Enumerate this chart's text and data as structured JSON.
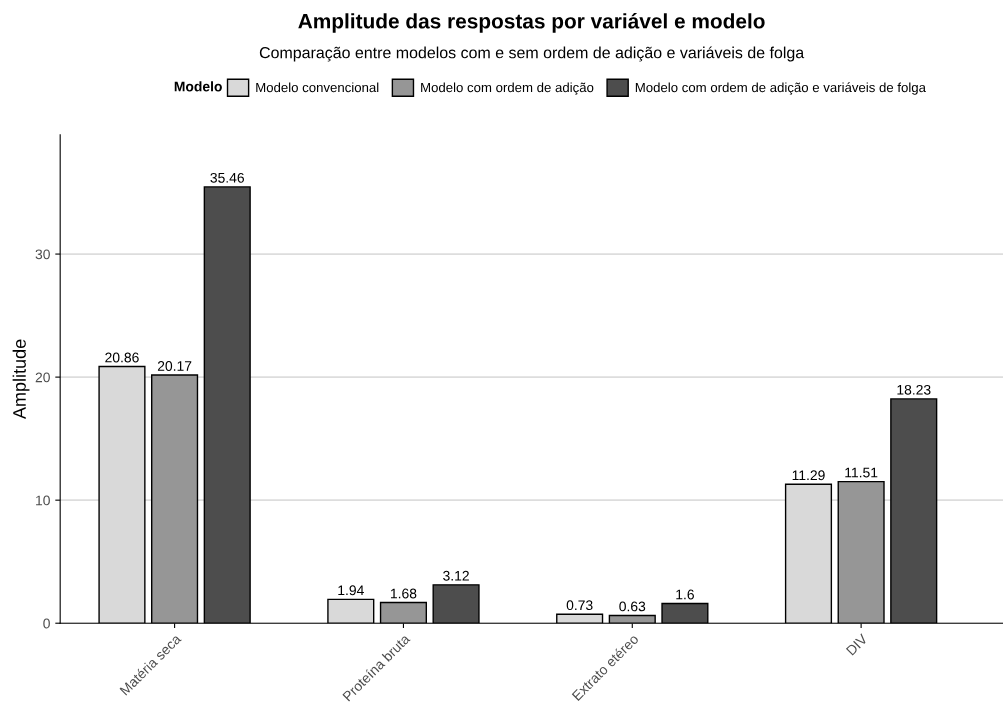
{
  "chart_data": {
    "type": "bar",
    "title": "Amplitude das respostas por variável e modelo",
    "subtitle": "Comparação entre modelos com e sem ordem de adição e variáveis de folga",
    "ylabel": "Amplitude",
    "legend_title": "Modelo",
    "categories": [
      "Matéria seca",
      "Proteína bruta",
      "Extrato etéreo",
      "DIV"
    ],
    "series": [
      {
        "name": "Modelo convencional",
        "color": "#d9d9d9",
        "values": [
          20.86,
          1.94,
          0.73,
          11.29
        ]
      },
      {
        "name": "Modelo com ordem de adição",
        "color": "#969696",
        "values": [
          20.17,
          1.68,
          0.63,
          11.51
        ]
      },
      {
        "name": "Modelo com ordem de adição e variáveis de folga",
        "color": "#4d4d4d",
        "values": [
          35.46,
          3.12,
          1.6,
          18.23
        ]
      }
    ],
    "ylim": [
      0,
      39.7
    ],
    "yticks": [
      0,
      10,
      20,
      30
    ],
    "grid": "y",
    "legend": "top",
    "data_labels": true
  }
}
